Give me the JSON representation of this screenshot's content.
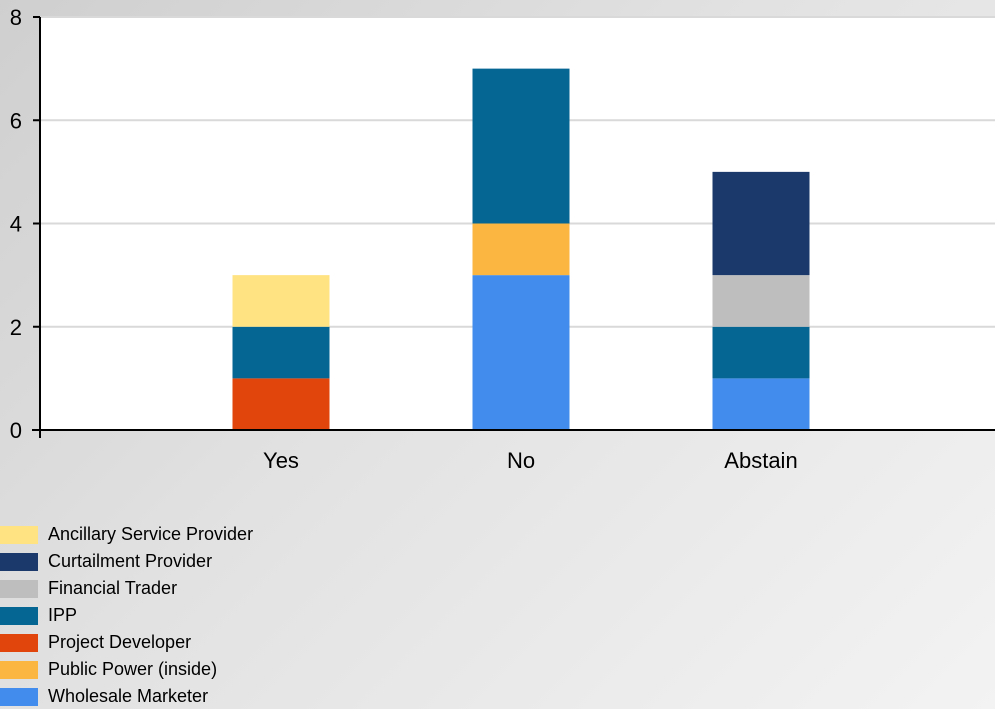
{
  "chart_data": {
    "type": "bar",
    "stacked": true,
    "categories": [
      "Yes",
      "No",
      "Abstain"
    ],
    "ylim": [
      0,
      8
    ],
    "yticks": [
      0,
      2,
      4,
      6,
      8
    ],
    "grid": true,
    "legend_position": "bottom-left",
    "series": [
      {
        "name": "Wholesale Marketer",
        "color": "#418ced",
        "values": [
          0,
          3,
          1
        ]
      },
      {
        "name": "Project Developer",
        "color": "#e1450b",
        "values": [
          1,
          0,
          0
        ]
      },
      {
        "name": "Public Power (inside)",
        "color": "#fbb641",
        "values": [
          0,
          1,
          0
        ]
      },
      {
        "name": "IPP",
        "color": "#066693",
        "values": [
          1,
          3,
          1
        ]
      },
      {
        "name": "Financial Trader",
        "color": "#bebebe",
        "values": [
          0,
          0,
          1
        ]
      },
      {
        "name": "Curtailment Provider",
        "color": "#1b3a6b",
        "values": [
          0,
          0,
          2
        ]
      },
      {
        "name": "Ancillary Service Provider",
        "color": "#ffe383",
        "values": [
          1,
          0,
          0
        ]
      }
    ],
    "legend": [
      {
        "name": "Ancillary Service Provider",
        "color": "#ffe383"
      },
      {
        "name": "Curtailment Provider",
        "color": "#1b3a6b"
      },
      {
        "name": "Financial Trader",
        "color": "#bebebe"
      },
      {
        "name": "IPP",
        "color": "#066693"
      },
      {
        "name": "Project Developer",
        "color": "#e1450b"
      },
      {
        "name": "Public Power (inside)",
        "color": "#fbb641"
      },
      {
        "name": "Wholesale Marketer",
        "color": "#418ced"
      }
    ]
  }
}
